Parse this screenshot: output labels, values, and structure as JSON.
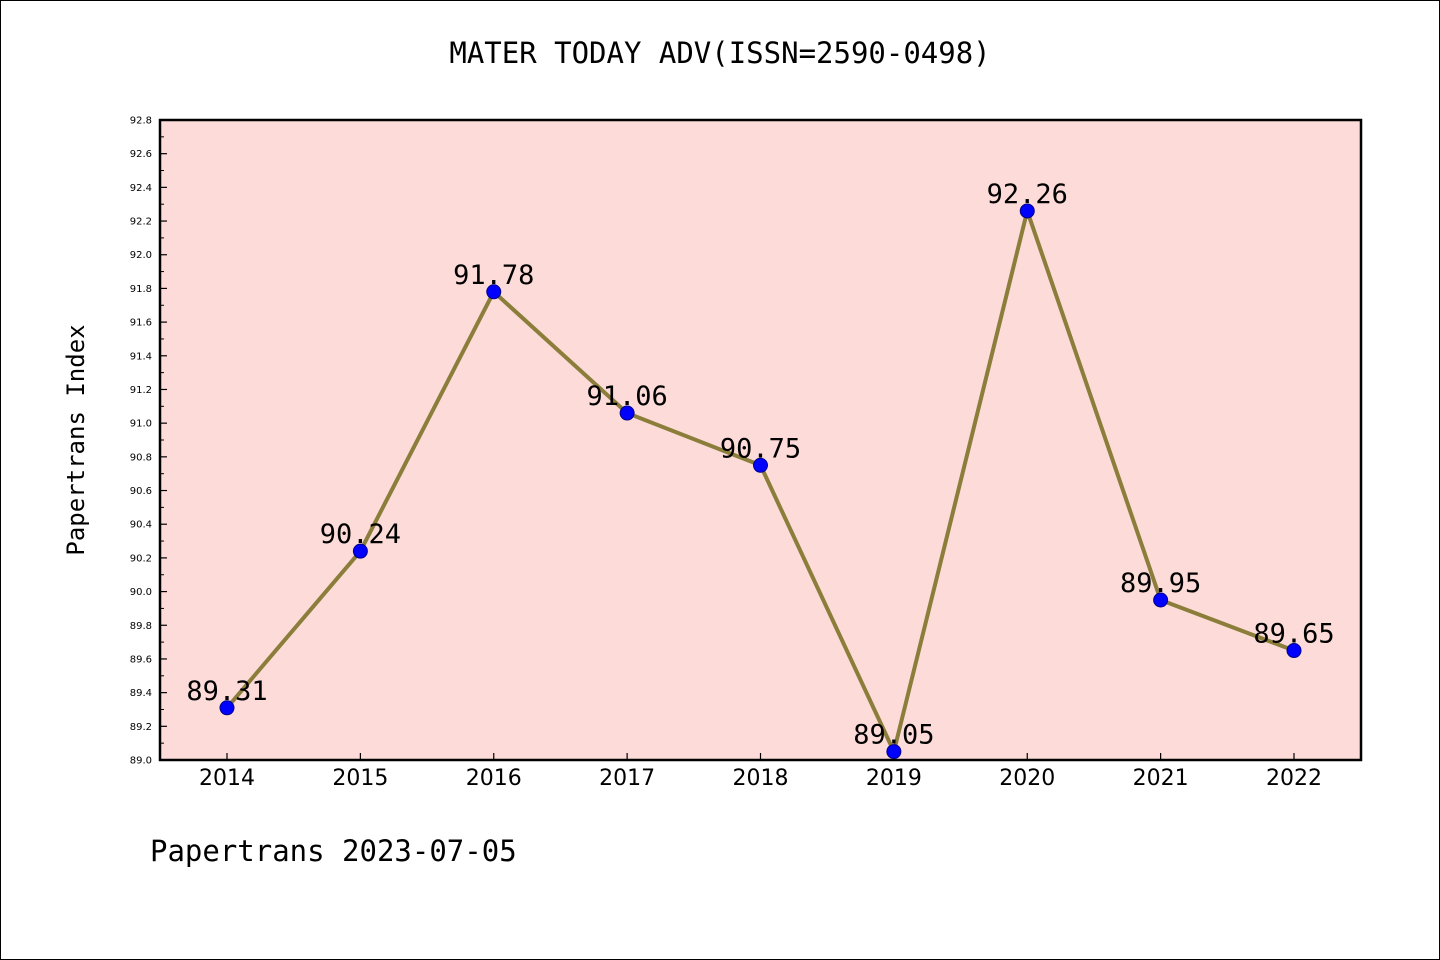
{
  "page": {
    "title": "MATER TODAY ADV(ISSN=2590-0498)",
    "footer": "Papertrans 2023-07-05"
  },
  "chart_data": {
    "type": "line",
    "title": "MATER TODAY ADV(ISSN=2590-0498)",
    "xlabel": "",
    "ylabel": "Papertrans Index",
    "categories": [
      "2014",
      "2015",
      "2016",
      "2017",
      "2018",
      "2019",
      "2020",
      "2021",
      "2022"
    ],
    "values": [
      89.31,
      90.24,
      91.78,
      91.06,
      90.75,
      89.05,
      92.26,
      89.95,
      89.65
    ],
    "data_labels": [
      "89.31",
      "90.24",
      "91.78",
      "91.06",
      "90.75",
      "89.05",
      "92.26",
      "89.95",
      "89.65"
    ],
    "ylim": [
      89.0,
      92.8
    ],
    "yticks": [
      "89.0",
      "89.2",
      "89.4",
      "89.6",
      "89.8",
      "90.0",
      "90.2",
      "90.4",
      "90.6",
      "90.8",
      "91.0",
      "91.2",
      "91.4",
      "91.6",
      "91.8",
      "92.0",
      "92.2",
      "92.4",
      "92.6",
      "92.8"
    ],
    "grid": false,
    "colors": {
      "plot_background": "#fddbd8",
      "line": "#8b7d3a",
      "marker": "#0000ff",
      "marker_edge": "#00008b"
    }
  }
}
